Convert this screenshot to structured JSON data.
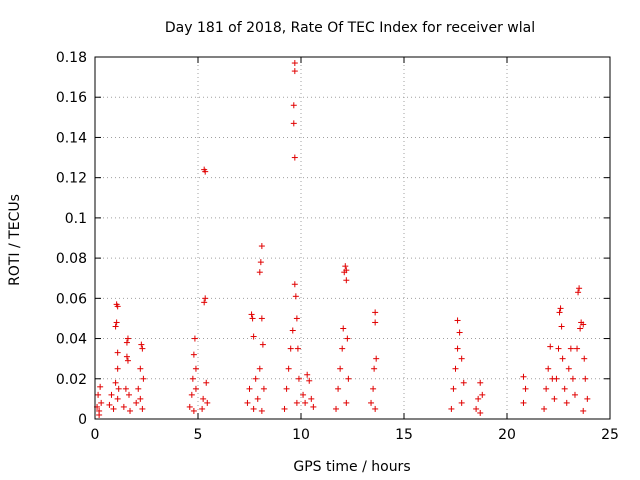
{
  "chart_data": {
    "type": "scatter",
    "title": "Day 181 of 2018, Rate Of TEC Index for receiver wlal",
    "xlabel": "GPS time / hours",
    "ylabel": "ROTI / TECUs",
    "xlim": [
      0,
      25
    ],
    "ylim": [
      0,
      0.18
    ],
    "x_ticks": [
      0,
      5,
      10,
      15,
      20,
      25
    ],
    "x_tick_labels": [
      "0",
      "5",
      "10",
      "15",
      "20",
      "25"
    ],
    "y_ticks": [
      0,
      0.02,
      0.04,
      0.06,
      0.08,
      0.1,
      0.12,
      0.14,
      0.16,
      0.18
    ],
    "y_tick_labels": [
      "0",
      "0.02",
      "0.04",
      "0.06",
      "0.08",
      "0.1",
      "0.12",
      "0.14",
      "0.16",
      "0.18"
    ],
    "grid": true,
    "marker": "+",
    "color": "#e00000",
    "series": [
      {
        "name": "ROTI",
        "points": [
          [
            0.1,
            0.006
          ],
          [
            0.15,
            0.012
          ],
          [
            0.2,
            0.004
          ],
          [
            0.25,
            0.016
          ],
          [
            0.3,
            0.008
          ],
          [
            0.2,
            0.002
          ],
          [
            0.7,
            0.007
          ],
          [
            0.8,
            0.012
          ],
          [
            0.9,
            0.005
          ],
          [
            1.0,
            0.018
          ],
          [
            1.0,
            0.046
          ],
          [
            1.05,
            0.057
          ],
          [
            1.1,
            0.056
          ],
          [
            1.1,
            0.033
          ],
          [
            1.15,
            0.015
          ],
          [
            1.1,
            0.01
          ],
          [
            1.05,
            0.048
          ],
          [
            1.1,
            0.025
          ],
          [
            1.4,
            0.006
          ],
          [
            1.5,
            0.015
          ],
          [
            1.55,
            0.038
          ],
          [
            1.6,
            0.04
          ],
          [
            1.55,
            0.031
          ],
          [
            1.6,
            0.029
          ],
          [
            1.65,
            0.012
          ],
          [
            1.7,
            0.004
          ],
          [
            2.0,
            0.008
          ],
          [
            2.1,
            0.015
          ],
          [
            2.2,
            0.025
          ],
          [
            2.25,
            0.037
          ],
          [
            2.3,
            0.035
          ],
          [
            2.35,
            0.02
          ],
          [
            2.3,
            0.005
          ],
          [
            2.2,
            0.01
          ],
          [
            4.6,
            0.006
          ],
          [
            4.7,
            0.012
          ],
          [
            4.75,
            0.02
          ],
          [
            4.8,
            0.032
          ],
          [
            4.85,
            0.04
          ],
          [
            4.9,
            0.025
          ],
          [
            4.8,
            0.004
          ],
          [
            4.9,
            0.015
          ],
          [
            5.2,
            0.005
          ],
          [
            5.25,
            0.01
          ],
          [
            5.3,
            0.058
          ],
          [
            5.35,
            0.06
          ],
          [
            5.3,
            0.124
          ],
          [
            5.35,
            0.123
          ],
          [
            5.4,
            0.018
          ],
          [
            5.45,
            0.008
          ],
          [
            7.4,
            0.008
          ],
          [
            7.5,
            0.015
          ],
          [
            7.6,
            0.052
          ],
          [
            7.65,
            0.05
          ],
          [
            7.7,
            0.041
          ],
          [
            7.8,
            0.02
          ],
          [
            7.7,
            0.005
          ],
          [
            7.9,
            0.01
          ],
          [
            8.0,
            0.025
          ],
          [
            8.0,
            0.073
          ],
          [
            8.05,
            0.078
          ],
          [
            8.1,
            0.086
          ],
          [
            8.1,
            0.05
          ],
          [
            8.15,
            0.037
          ],
          [
            8.2,
            0.015
          ],
          [
            8.1,
            0.004
          ],
          [
            9.2,
            0.005
          ],
          [
            9.3,
            0.015
          ],
          [
            9.4,
            0.025
          ],
          [
            9.5,
            0.035
          ],
          [
            9.6,
            0.044
          ],
          [
            9.65,
            0.147
          ],
          [
            9.65,
            0.156
          ],
          [
            9.7,
            0.173
          ],
          [
            9.7,
            0.177
          ],
          [
            9.7,
            0.13
          ],
          [
            9.7,
            0.067
          ],
          [
            9.75,
            0.061
          ],
          [
            9.8,
            0.05
          ],
          [
            9.85,
            0.035
          ],
          [
            9.9,
            0.02
          ],
          [
            9.8,
            0.008
          ],
          [
            10.1,
            0.012
          ],
          [
            10.2,
            0.008
          ],
          [
            10.3,
            0.022
          ],
          [
            10.4,
            0.019
          ],
          [
            10.5,
            0.01
          ],
          [
            10.6,
            0.006
          ],
          [
            11.7,
            0.005
          ],
          [
            11.8,
            0.015
          ],
          [
            11.9,
            0.025
          ],
          [
            12.0,
            0.035
          ],
          [
            12.05,
            0.045
          ],
          [
            12.1,
            0.073
          ],
          [
            12.15,
            0.076
          ],
          [
            12.2,
            0.074
          ],
          [
            12.2,
            0.069
          ],
          [
            12.25,
            0.04
          ],
          [
            12.3,
            0.02
          ],
          [
            12.2,
            0.008
          ],
          [
            13.4,
            0.008
          ],
          [
            13.5,
            0.015
          ],
          [
            13.55,
            0.025
          ],
          [
            13.6,
            0.048
          ],
          [
            13.6,
            0.053
          ],
          [
            13.65,
            0.03
          ],
          [
            13.6,
            0.005
          ],
          [
            17.3,
            0.005
          ],
          [
            17.4,
            0.015
          ],
          [
            17.5,
            0.025
          ],
          [
            17.6,
            0.035
          ],
          [
            17.6,
            0.049
          ],
          [
            17.7,
            0.043
          ],
          [
            17.8,
            0.03
          ],
          [
            17.9,
            0.018
          ],
          [
            17.8,
            0.008
          ],
          [
            18.5,
            0.005
          ],
          [
            18.6,
            0.01
          ],
          [
            18.7,
            0.018
          ],
          [
            18.8,
            0.012
          ],
          [
            18.7,
            0.003
          ],
          [
            20.8,
            0.008
          ],
          [
            20.9,
            0.015
          ],
          [
            20.8,
            0.021
          ],
          [
            21.8,
            0.005
          ],
          [
            21.9,
            0.015
          ],
          [
            22.0,
            0.025
          ],
          [
            22.1,
            0.036
          ],
          [
            22.2,
            0.02
          ],
          [
            22.3,
            0.01
          ],
          [
            22.4,
            0.02
          ],
          [
            22.5,
            0.035
          ],
          [
            22.55,
            0.053
          ],
          [
            22.6,
            0.055
          ],
          [
            22.65,
            0.046
          ],
          [
            22.7,
            0.03
          ],
          [
            22.8,
            0.015
          ],
          [
            22.9,
            0.008
          ],
          [
            23.0,
            0.025
          ],
          [
            23.1,
            0.035
          ],
          [
            23.2,
            0.02
          ],
          [
            23.3,
            0.012
          ],
          [
            23.4,
            0.035
          ],
          [
            23.45,
            0.063
          ],
          [
            23.5,
            0.065
          ],
          [
            23.55,
            0.045
          ],
          [
            23.6,
            0.048
          ],
          [
            23.7,
            0.047
          ],
          [
            23.75,
            0.03
          ],
          [
            23.8,
            0.02
          ],
          [
            23.9,
            0.01
          ],
          [
            23.7,
            0.004
          ]
        ]
      }
    ]
  }
}
